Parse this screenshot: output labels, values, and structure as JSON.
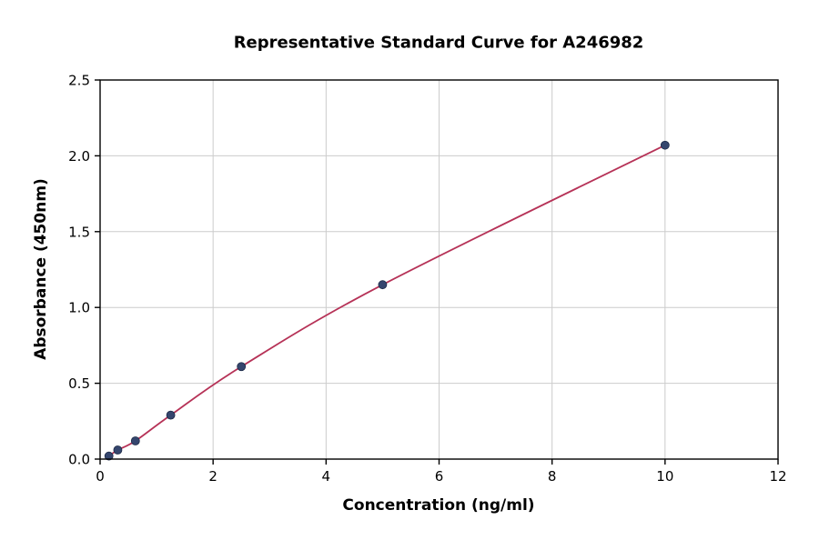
{
  "chart_data": {
    "type": "scatter",
    "title": "Representative Standard Curve for A246982",
    "xlabel": "Concentration (ng/ml)",
    "ylabel": "Absorbance (450nm)",
    "xlim": [
      0,
      12
    ],
    "ylim": [
      0,
      2.5
    ],
    "x_ticks": [
      0,
      2,
      4,
      6,
      8,
      10,
      12
    ],
    "x_tick_labels": [
      "0",
      "2",
      "4",
      "6",
      "8",
      "10",
      "12"
    ],
    "y_ticks": [
      0.0,
      0.5,
      1.0,
      1.5,
      2.0,
      2.5
    ],
    "y_tick_labels": [
      "0.0",
      "0.5",
      "1.0",
      "1.5",
      "2.0",
      "2.5"
    ],
    "grid": true,
    "legend": "none",
    "points": {
      "x": [
        0.156,
        0.313,
        0.625,
        1.25,
        2.5,
        5,
        10
      ],
      "y": [
        0.02,
        0.06,
        0.12,
        0.29,
        0.61,
        1.15,
        2.07
      ]
    },
    "fit_curve_through_points": true,
    "colors": {
      "background": "#ffffff",
      "axis": "#000000",
      "grid": "#cccccc",
      "line": "#b63257",
      "point_fill": "#35466e",
      "point_edge": "#1d2a47"
    }
  }
}
